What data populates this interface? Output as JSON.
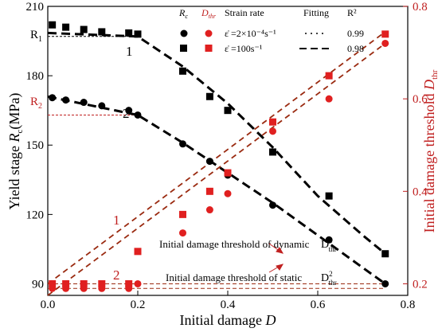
{
  "chart_data": {
    "type": "scatter",
    "xlabel": "Initial damage D",
    "ylabel_left": "Yield stage Rc(MPa)",
    "ylabel_right": "Initial damage threshold Dthr",
    "xlim": [
      0,
      0.8
    ],
    "ylim_left": [
      85,
      210
    ],
    "ylim_right": [
      0.175,
      0.8
    ],
    "x_ticks": [
      "0.0",
      "0.2",
      "0.4",
      "0.6",
      "0.8"
    ],
    "x_tick_values": [
      0,
      0.2,
      0.4,
      0.6,
      0.8
    ],
    "y_left_ticks": [
      "90",
      "120",
      "150",
      "180",
      "210"
    ],
    "y_left_tick_values": [
      90,
      120,
      150,
      180,
      210
    ],
    "y_right_ticks": [
      "0.2",
      "0.4",
      "0.6",
      "0.8"
    ],
    "y_right_tick_values": [
      0.2,
      0.4,
      0.6,
      0.8
    ],
    "legend": {
      "col_rc": "Rc",
      "col_dthr": "Dthr",
      "col_rate": "Strain rate",
      "col_fitting": "Fitting",
      "col_r2": "R²",
      "row1_rate": "ε̇ =2×10⁻⁴s⁻¹",
      "row1_r2": "0.99",
      "row2_rate": "ε̇ =100s⁻¹",
      "row2_r2": "0.98"
    },
    "series": [
      {
        "axis": "left",
        "marker": "square",
        "color": "#000000",
        "x": [
          0.01,
          0.04,
          0.08,
          0.12,
          0.18,
          0.2,
          0.3,
          0.36,
          0.4,
          0.5,
          0.625,
          0.75
        ],
        "values": [
          202,
          201,
          200,
          199,
          198.5,
          198,
          182,
          171,
          165,
          147,
          128,
          103
        ]
      },
      {
        "axis": "left",
        "marker": "circle",
        "color": "#000000",
        "x": [
          0.01,
          0.04,
          0.08,
          0.12,
          0.18,
          0.2,
          0.3,
          0.36,
          0.4,
          0.5,
          0.625,
          0.75
        ],
        "values": [
          170.5,
          169.5,
          168.5,
          167,
          165,
          163,
          150.5,
          143,
          137,
          124,
          109,
          90
        ]
      },
      {
        "axis": "right",
        "marker": "square",
        "color": "#e02020",
        "x": [
          0.01,
          0.04,
          0.08,
          0.12,
          0.18,
          0.2,
          0.3,
          0.36,
          0.4,
          0.5,
          0.625,
          0.75
        ],
        "values": [
          0.2,
          0.2,
          0.2,
          0.2,
          0.2,
          0.27,
          0.35,
          0.4,
          0.44,
          0.55,
          0.65,
          0.74
        ]
      },
      {
        "axis": "right",
        "marker": "circle",
        "color": "#e02020",
        "x": [
          0.01,
          0.04,
          0.08,
          0.12,
          0.18,
          0.2,
          0.3,
          0.36,
          0.4,
          0.5,
          0.625,
          0.75
        ],
        "values": [
          0.19,
          0.19,
          0.19,
          0.19,
          0.19,
          0.2,
          0.31,
          0.36,
          0.395,
          0.53,
          0.6,
          0.72
        ]
      }
    ],
    "fit_lines": [
      {
        "axis": "left",
        "color": "#000000",
        "x": [
          0.0,
          0.2,
          0.3,
          0.4,
          0.5,
          0.6,
          0.7,
          0.75
        ],
        "values": [
          198.5,
          197,
          184,
          168,
          149,
          128,
          111,
          103
        ]
      },
      {
        "axis": "left",
        "color": "#000000",
        "x": [
          0.0,
          0.2,
          0.3,
          0.4,
          0.5,
          0.6,
          0.7,
          0.75
        ],
        "values": [
          171,
          163,
          151,
          138,
          125,
          111,
          97,
          90
        ]
      },
      {
        "axis": "right",
        "color": "#9a2a10",
        "x": [
          0.0,
          0.75
        ],
        "values": [
          0.2,
          0.745
        ]
      },
      {
        "axis": "right",
        "color": "#9a2a10",
        "x": [
          0.0,
          0.75
        ],
        "values": [
          0.175,
          0.72
        ]
      }
    ],
    "reference_lines": [
      {
        "axis": "left",
        "label": "R1",
        "y": 197,
        "x_end": 0.19
      },
      {
        "axis": "left",
        "label": "R2",
        "y": 163,
        "x_end": 0.19
      },
      {
        "axis": "right",
        "y": 0.2,
        "color": "#9a2a10"
      },
      {
        "axis": "right",
        "y": 0.19,
        "color": "#9a2a10"
      }
    ],
    "annotations": {
      "line_label_1_black": "1",
      "line_label_2_black": "2",
      "line_label_1_red": "1",
      "line_label_2_red": "2",
      "threshold_dynamic": "Initial damage threshold of dynamic",
      "threshold_static": "Initial damage threshold of static",
      "dthr_dynamic": "D¹thr",
      "dthr_static": "D²thr"
    }
  }
}
